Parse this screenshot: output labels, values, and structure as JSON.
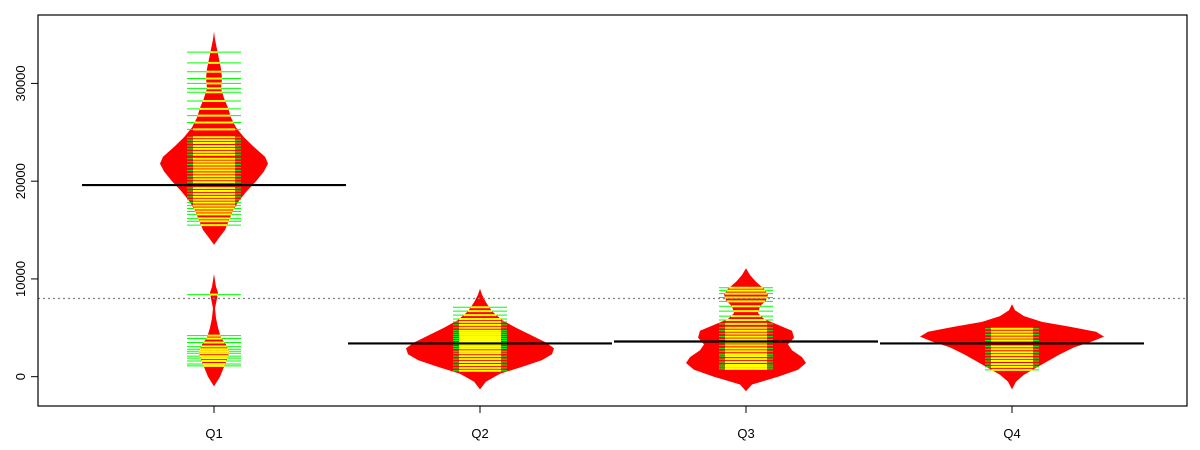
{
  "chart_data": {
    "type": "beanplot",
    "title": "",
    "xlabel": "",
    "ylabel": "",
    "ylim": [
      -3000,
      37000
    ],
    "y_ticks": [
      0,
      10000,
      20000,
      30000
    ],
    "y_tick_labels": [
      "0",
      "10000",
      "20000",
      "30000"
    ],
    "grid": false,
    "overall_mean": 8000,
    "colors": {
      "fill": "#ff0000",
      "inner_lines": "#ffff00",
      "outer_lines": "#00ff00",
      "mean_line": "#000000",
      "reference_line": "#808080"
    },
    "categories": [
      {
        "label": "Q1",
        "mean": 19600,
        "density": [
          [
            -1000,
            0
          ],
          [
            0,
            6
          ],
          [
            1000,
            10
          ],
          [
            2000,
            14
          ],
          [
            2600,
            15
          ],
          [
            3300,
            12
          ],
          [
            4000,
            7
          ],
          [
            5000,
            4
          ],
          [
            6000,
            2
          ],
          [
            7000,
            1
          ],
          [
            8000,
            3
          ],
          [
            8600,
            4
          ],
          [
            9200,
            2
          ],
          [
            10500,
            0
          ],
          [
            11500,
            0
          ],
          [
            13500,
            0
          ],
          [
            14200,
            5
          ],
          [
            15000,
            11
          ],
          [
            16000,
            15
          ],
          [
            17000,
            19
          ],
          [
            18000,
            25
          ],
          [
            19000,
            33
          ],
          [
            20000,
            42
          ],
          [
            21000,
            50
          ],
          [
            21800,
            54
          ],
          [
            22500,
            51
          ],
          [
            23500,
            40
          ],
          [
            24500,
            30
          ],
          [
            25500,
            22
          ],
          [
            26500,
            17
          ],
          [
            27500,
            14
          ],
          [
            28500,
            10
          ],
          [
            29500,
            7
          ],
          [
            30500,
            8
          ],
          [
            31500,
            7
          ],
          [
            32500,
            5
          ],
          [
            33500,
            3
          ],
          [
            34500,
            1
          ],
          [
            35300,
            0
          ]
        ],
        "observations": [
          1100,
          1300,
          1600,
          1900,
          2100,
          2400,
          2600,
          2800,
          3100,
          3500,
          3900,
          4200,
          8400,
          15500,
          15900,
          16200,
          16600,
          16900,
          17200,
          17500,
          17800,
          18100,
          18400,
          18700,
          19000,
          19300,
          19600,
          19900,
          20200,
          20500,
          20800,
          21100,
          21400,
          21700,
          22000,
          22300,
          22700,
          23000,
          23300,
          23600,
          23900,
          24200,
          24500,
          25300,
          26000,
          26700,
          27400,
          28200,
          29100,
          29500,
          30000,
          30500,
          31200,
          32100,
          33200
        ]
      },
      {
        "label": "Q2",
        "mean": 3400,
        "density": [
          [
            -1300,
            0
          ],
          [
            -500,
            6
          ],
          [
            300,
            20
          ],
          [
            1000,
            42
          ],
          [
            1700,
            62
          ],
          [
            2300,
            72
          ],
          [
            2900,
            74
          ],
          [
            3500,
            66
          ],
          [
            4200,
            52
          ],
          [
            5000,
            36
          ],
          [
            5800,
            22
          ],
          [
            6700,
            12
          ],
          [
            7600,
            6
          ],
          [
            8400,
            2
          ],
          [
            9000,
            0
          ]
        ],
        "observations": [
          600,
          900,
          1200,
          1500,
          1800,
          2100,
          2400,
          2600,
          2900,
          3100,
          3300,
          3500,
          3700,
          3900,
          4100,
          4300,
          4500,
          4700,
          5000,
          5300,
          5600,
          5900,
          6300,
          6700,
          7100
        ]
      },
      {
        "label": "Q3",
        "mean": 3600,
        "density": [
          [
            -1500,
            0
          ],
          [
            -800,
            6
          ],
          [
            0,
            32
          ],
          [
            700,
            52
          ],
          [
            1400,
            60
          ],
          [
            2000,
            56
          ],
          [
            2700,
            46
          ],
          [
            3300,
            42
          ],
          [
            4000,
            48
          ],
          [
            4700,
            46
          ],
          [
            5300,
            32
          ],
          [
            5900,
            18
          ],
          [
            6500,
            12
          ],
          [
            7200,
            14
          ],
          [
            7800,
            20
          ],
          [
            8400,
            22
          ],
          [
            9000,
            18
          ],
          [
            9700,
            10
          ],
          [
            10400,
            4
          ],
          [
            11100,
            0
          ]
        ],
        "observations": [
          800,
          1000,
          1200,
          1500,
          1800,
          2100,
          2300,
          2600,
          2900,
          3200,
          3500,
          3800,
          4100,
          4400,
          4700,
          5000,
          5400,
          5800,
          6200,
          6700,
          7200,
          7700,
          8100,
          8500,
          8800,
          9100
        ]
      },
      {
        "label": "Q4",
        "mean": 3400,
        "density": [
          [
            -1300,
            0
          ],
          [
            -500,
            4
          ],
          [
            200,
            12
          ],
          [
            900,
            24
          ],
          [
            1600,
            36
          ],
          [
            2300,
            48
          ],
          [
            3000,
            62
          ],
          [
            3600,
            80
          ],
          [
            4100,
            92
          ],
          [
            4600,
            84
          ],
          [
            5100,
            58
          ],
          [
            5600,
            30
          ],
          [
            6200,
            12
          ],
          [
            6800,
            3
          ],
          [
            7400,
            0
          ]
        ],
        "observations": [
          700,
          1000,
          1300,
          1600,
          1900,
          2200,
          2500,
          2800,
          3100,
          3400,
          3700,
          4000,
          4300,
          4600,
          4900
        ]
      }
    ]
  }
}
